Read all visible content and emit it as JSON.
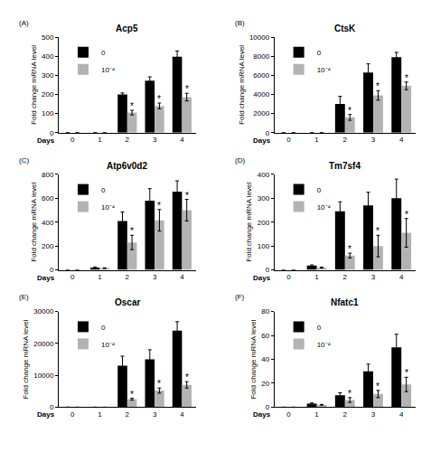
{
  "chart_data": [
    {
      "type": "bar",
      "panel_label": "(A)",
      "title": "Acp5",
      "x_label": "Days",
      "y_label": "Fold change mRNA level",
      "categories": [
        "0",
        "1",
        "2",
        "3",
        "4"
      ],
      "legend": "upper left",
      "grid": false,
      "ylim": [
        0,
        500
      ],
      "yticks": [
        0,
        100,
        200,
        300,
        400,
        500
      ],
      "series": [
        {
          "name": "0",
          "color": "#000000",
          "values": [
            0,
            0,
            200,
            272,
            397
          ],
          "errors": [
            0,
            0,
            8,
            20,
            30
          ]
        },
        {
          "name": "10⁻⁴",
          "color": "#b3b3b3",
          "values": [
            0,
            0,
            105,
            140,
            186
          ],
          "errors": [
            0,
            0,
            12,
            15,
            20
          ]
        }
      ],
      "annotations": [
        {
          "category": "2",
          "series": "10⁻⁴",
          "text": "*"
        },
        {
          "category": "3",
          "series": "10⁻⁴",
          "text": "*"
        },
        {
          "category": "4",
          "series": "10⁻⁴",
          "text": "*"
        }
      ]
    },
    {
      "type": "bar",
      "panel_label": "(B)",
      "title": "CtsK",
      "x_label": "Days",
      "y_label": "Fold change mRNA level",
      "categories": [
        "0",
        "1",
        "2",
        "3",
        "4"
      ],
      "legend": "upper left",
      "grid": false,
      "ylim": [
        0,
        10000
      ],
      "yticks": [
        0,
        2000,
        4000,
        6000,
        8000,
        10000
      ],
      "series": [
        {
          "name": "0",
          "color": "#000000",
          "values": [
            0,
            0,
            3000,
            6300,
            7900
          ],
          "errors": [
            0,
            0,
            800,
            900,
            500
          ]
        },
        {
          "name": "10⁻⁴",
          "color": "#b3b3b3",
          "values": [
            0,
            0,
            1600,
            3900,
            4900
          ],
          "errors": [
            0,
            0,
            300,
            500,
            400
          ]
        }
      ],
      "annotations": [
        {
          "category": "2",
          "series": "10⁻⁴",
          "text": "*"
        },
        {
          "category": "3",
          "series": "10⁻⁴",
          "text": "*"
        },
        {
          "category": "4",
          "series": "10⁻⁴",
          "text": "*"
        }
      ]
    },
    {
      "type": "bar",
      "panel_label": "(C)",
      "title": "Atp6v0d2",
      "x_label": "Days",
      "y_label": "Fold change mRNA level",
      "categories": [
        "0",
        "1",
        "2",
        "3",
        "4"
      ],
      "legend": "upper left",
      "grid": false,
      "ylim": [
        0,
        800
      ],
      "yticks": [
        0,
        200,
        400,
        600,
        800
      ],
      "series": [
        {
          "name": "0",
          "color": "#000000",
          "values": [
            0,
            20,
            410,
            580,
            655
          ],
          "errors": [
            0,
            5,
            75,
            100,
            90
          ]
        },
        {
          "name": "10⁻⁴",
          "color": "#b3b3b3",
          "values": [
            0,
            15,
            230,
            415,
            500
          ],
          "errors": [
            0,
            3,
            60,
            90,
            90
          ]
        }
      ],
      "annotations": [
        {
          "category": "2",
          "series": "10⁻⁴",
          "text": "*"
        },
        {
          "category": "3",
          "series": "10⁻⁴",
          "text": "*"
        },
        {
          "category": "4",
          "series": "10⁻⁴",
          "text": "*"
        }
      ]
    },
    {
      "type": "bar",
      "panel_label": "(D)",
      "title": "Tm7sf4",
      "x_label": "Days",
      "y_label": "Fold change mRNA level",
      "categories": [
        "0",
        "1",
        "2",
        "3",
        "4"
      ],
      "legend": "upper left",
      "grid": false,
      "ylim": [
        0,
        400
      ],
      "yticks": [
        0,
        100,
        200,
        300,
        400
      ],
      "series": [
        {
          "name": "0",
          "color": "#000000",
          "values": [
            0,
            18,
            245,
            270,
            300
          ],
          "errors": [
            0,
            3,
            40,
            55,
            80
          ]
        },
        {
          "name": "10⁻⁴",
          "color": "#b3b3b3",
          "values": [
            0,
            10,
            60,
            100,
            155
          ],
          "errors": [
            0,
            2,
            10,
            45,
            60
          ]
        }
      ],
      "annotations": [
        {
          "category": "2",
          "series": "10⁻⁴",
          "text": "*"
        },
        {
          "category": "3",
          "series": "10⁻⁴",
          "text": "*"
        },
        {
          "category": "4",
          "series": "10⁻⁴",
          "text": "*"
        }
      ]
    },
    {
      "type": "bar",
      "panel_label": "(E)",
      "title": "Oscar",
      "x_label": "Days",
      "y_label": "Fold change mRNA level",
      "categories": [
        "0",
        "1",
        "2",
        "3",
        "4"
      ],
      "legend": "upper left",
      "grid": false,
      "ylim": [
        0,
        30000
      ],
      "yticks": [
        0,
        10000,
        20000,
        30000
      ],
      "series": [
        {
          "name": "0",
          "color": "#000000",
          "values": [
            0,
            0,
            13000,
            15000,
            24000
          ],
          "errors": [
            0,
            0,
            3000,
            3000,
            2800
          ]
        },
        {
          "name": "10⁻⁴",
          "color": "#b3b3b3",
          "values": [
            0,
            0,
            2500,
            5200,
            7000
          ],
          "errors": [
            0,
            0,
            300,
            800,
            1000
          ]
        }
      ],
      "annotations": [
        {
          "category": "2",
          "series": "10⁻⁴",
          "text": "*"
        },
        {
          "category": "3",
          "series": "10⁻⁴",
          "text": "*"
        },
        {
          "category": "4",
          "series": "10⁻⁴",
          "text": "*"
        }
      ]
    },
    {
      "type": "bar",
      "panel_label": "(F)",
      "title": "Nfatc1",
      "x_label": "Days",
      "y_label": "Fold change mRNA level",
      "categories": [
        "0",
        "1",
        "2",
        "3",
        "4"
      ],
      "legend": "upper left",
      "grid": false,
      "ylim": [
        0,
        80
      ],
      "yticks": [
        0,
        20,
        40,
        60,
        80
      ],
      "series": [
        {
          "name": "0",
          "color": "#000000",
          "values": [
            0,
            3,
            10,
            30,
            50
          ],
          "errors": [
            0,
            0.5,
            2,
            6,
            11
          ]
        },
        {
          "name": "10⁻⁴",
          "color": "#b3b3b3",
          "values": [
            0,
            2,
            6,
            11,
            19
          ],
          "errors": [
            0,
            0.3,
            2,
            3,
            6
          ]
        }
      ],
      "annotations": [
        {
          "category": "2",
          "series": "10⁻⁴",
          "text": "*"
        },
        {
          "category": "3",
          "series": "10⁻⁴",
          "text": "*"
        },
        {
          "category": "4",
          "series": "10⁻⁴",
          "text": "*"
        }
      ]
    }
  ]
}
